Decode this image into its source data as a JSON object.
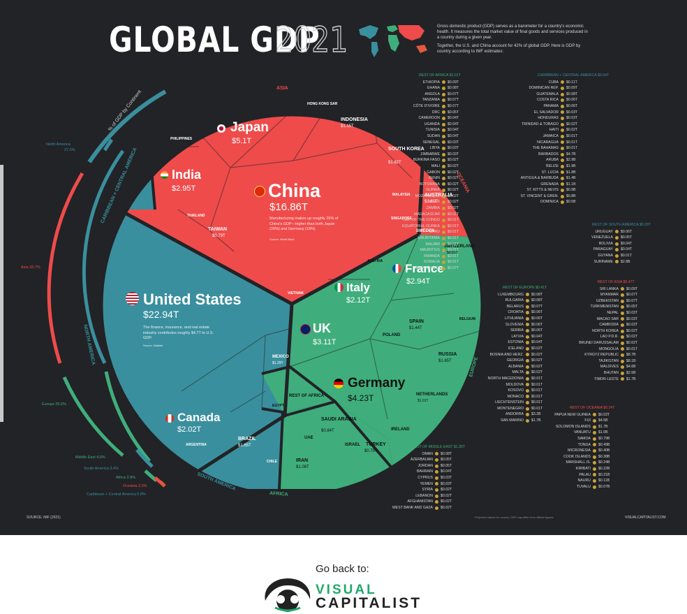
{
  "header": {
    "title": "GLOBAL GDP",
    "year": "2021",
    "intro_1": "Gross domestic product (GDP) serves as a barometer for a country's economic health. It measures the total market value of final goods and services produced in a country during a given year.",
    "intro_2": "Together, the U.S. and China account for 42% of global GDP. Here is GDP by country according to IMF estimates:"
  },
  "ring": {
    "label": "% of GDP by Continent",
    "north_america": "North America",
    "north_america_pct": "27.0%",
    "asia": "Asia 33.7%",
    "europe": "Europe 25.0%",
    "middle_east": "Middle East 4.6%",
    "south_america": "South America 3.4%",
    "africa": "Africa 2.8%",
    "oceania": "Oceania 2.0%",
    "caribbean": "Caribbean + Central America 0.8%"
  },
  "regions": {
    "asia": "ASIA",
    "oceania": "OCEANIA",
    "europe": "EUROPE",
    "north_america": "NORTH AMERICA",
    "south_america": "SOUTH AMERICA",
    "africa": "AFRICA",
    "middle_east": "MIDDLE EAST",
    "caribbean": "CARIBBEAN + CENTRAL AMERICA"
  },
  "chart_data": {
    "type": "voronoi-treemap",
    "title": "GLOBAL GDP 2021",
    "units": "$T",
    "continents": [
      {
        "name": "Asia",
        "share_pct": 33.7
      },
      {
        "name": "North America",
        "share_pct": 27.0
      },
      {
        "name": "Europe",
        "share_pct": 25.0
      },
      {
        "name": "Middle East",
        "share_pct": 4.6
      },
      {
        "name": "South America",
        "share_pct": 3.4
      },
      {
        "name": "Africa",
        "share_pct": 2.8
      },
      {
        "name": "Oceania",
        "share_pct": 2.0
      },
      {
        "name": "Caribbean + Central America",
        "share_pct": 0.8
      }
    ],
    "countries": [
      {
        "name": "United States",
        "gdp": "$22.94T",
        "region": "North America"
      },
      {
        "name": "China",
        "gdp": "$16.86T",
        "region": "Asia"
      },
      {
        "name": "Japan",
        "gdp": "$5.1T",
        "region": "Asia"
      },
      {
        "name": "Germany",
        "gdp": "$4.23T",
        "region": "Europe"
      },
      {
        "name": "UK",
        "gdp": "$3.11T",
        "region": "Europe"
      },
      {
        "name": "India",
        "gdp": "$2.95T",
        "region": "Asia"
      },
      {
        "name": "France",
        "gdp": "$2.94T",
        "region": "Europe"
      },
      {
        "name": "Italy",
        "gdp": "$2.12T",
        "region": "Europe"
      },
      {
        "name": "Canada",
        "gdp": "$2.02T",
        "region": "North America"
      },
      {
        "name": "South Korea",
        "gdp": "$1.82T",
        "region": "Asia"
      },
      {
        "name": "Russia",
        "gdp": "$1.65T",
        "region": "Europe"
      },
      {
        "name": "Brazil",
        "gdp": "$1.65T",
        "region": "South America"
      },
      {
        "name": "Australia",
        "gdp": "$1.61T",
        "region": "Oceania"
      },
      {
        "name": "Spain",
        "gdp": "$1.44T",
        "region": "Europe"
      },
      {
        "name": "Mexico",
        "gdp": "$1.29T",
        "region": "North America"
      },
      {
        "name": "Indonesia",
        "gdp": "$1.15T",
        "region": "Asia"
      },
      {
        "name": "Iran",
        "gdp": "$1.08T",
        "region": "Middle East"
      },
      {
        "name": "Netherlands",
        "gdp": "$1.01T",
        "region": "Europe"
      },
      {
        "name": "Saudi Arabia",
        "gdp": "$0.84T",
        "region": "Middle East"
      },
      {
        "name": "Switzerland",
        "gdp": "$0.81T",
        "region": "Europe"
      },
      {
        "name": "Taiwan",
        "gdp": "$0.79T",
        "region": "Asia"
      },
      {
        "name": "Turkey",
        "gdp": "$0.79T",
        "region": "Middle East"
      }
    ]
  },
  "labels": {
    "china_name": "China",
    "china_value": "$16.86T",
    "china_note": "Manufacturing makes up roughly 25% of China's GDP—higher than both Japan (20%) and Germany (18%)",
    "china_source": "Source: World Bank",
    "us_name": "United States",
    "us_value": "$22.94T",
    "us_note": "The finance, insurance, and real estate industry contributes roughly $4.7T to U.S. GDP.",
    "us_source": "Source: Statista",
    "japan_name": "Japan",
    "japan_value": "$5.1T",
    "india_name": "India",
    "india_value": "$2.95T",
    "germany_name": "Germany",
    "germany_value": "$4.23T",
    "uk_name": "UK",
    "uk_value": "$3.11T",
    "france_name": "France",
    "france_value": "$2.94T",
    "italy_name": "Italy",
    "italy_value": "$2.12T",
    "canada_name": "Canada",
    "canada_value": "$2.02T",
    "korea_name": "SOUTH KOREA",
    "korea_value": "$1.82T",
    "australia_name": "AUSTRALIA",
    "australia_value": "$1.61T",
    "indonesia_name": "INDONESIA",
    "indonesia_value": "$1.15T",
    "russia_name": "RUSSIA",
    "russia_value": "$1.65T",
    "brazil_name": "BRAZIL",
    "brazil_value": "$1.65T",
    "spain_name": "SPAIN",
    "spain_value": "$1.44T",
    "mexico_name": "MEXICO",
    "mexico_value": "$1.29T",
    "taiwan_name": "TAIWAN",
    "taiwan_value": "$0.79T",
    "saudi_name": "SAUDI ARABIA",
    "saudi_value": "$0.84T",
    "turkey_name": "TURKEY",
    "turkey_value": "$0.79T",
    "iran_name": "IRAN",
    "iran_value": "$1.08T",
    "netherlands_name": "NETHERLANDS",
    "netherlands_value": "$1.01T",
    "switzerland_name": "SWITZERLAND",
    "switzerland_value": "$0.81T",
    "sweden_name": "SWEDEN",
    "poland_name": "POLAND",
    "ireland_name": "IRELAND",
    "belgium_name": "BELGIUM",
    "austria_name": "AUSTRIA",
    "israel_name": "ISRAEL",
    "uae_name": "UAE",
    "egypt_name": "EGYPT",
    "argentina_name": "ARGENTINA",
    "chile_name": "CHILE",
    "thailand_name": "THAILAND",
    "philippines_name": "PHILIPPINES",
    "singapore_name": "SINGAPORE",
    "malaysia_name": "MALAYSIA",
    "hongkong_name": "HONG KONG SAR",
    "vietnam_name": "VIETNAM",
    "rest_africa": "REST OF AFRICA"
  },
  "lists": [
    {
      "header": "REST OF AFRICA $1.01T",
      "rows": [
        [
          "ETHIOPIA",
          "$0.09T"
        ],
        [
          "GHANA",
          "$0.08T"
        ],
        [
          "ANGOLA",
          "$0.07T"
        ],
        [
          "TANZANIA",
          "$0.07T"
        ],
        [
          "CÔTE D'IVOIRE",
          "$0.07T"
        ],
        [
          "DRC",
          "$0.05T"
        ],
        [
          "CAMEROON",
          "$0.04T"
        ],
        [
          "UGANDA",
          "$0.04T"
        ],
        [
          "TUNISIA",
          "$0.04T"
        ],
        [
          "SUDAN",
          "$0.04T"
        ],
        [
          "SENEGAL",
          "$0.03T"
        ],
        [
          "LIBYA",
          "$0.03T"
        ],
        [
          "ZIMBABWE",
          "$0.03T"
        ],
        [
          "BURKINA FASO",
          "$0.02T"
        ],
        [
          "MALI",
          "$0.02T"
        ],
        [
          "GABON",
          "$0.02T"
        ],
        [
          "BENIN",
          "$0.02T"
        ],
        [
          "BOTSWANA",
          "$0.02T"
        ],
        [
          "GUINEA",
          "$0.02T"
        ],
        [
          "MOZAMBIQUE",
          "$0.02T"
        ],
        [
          "NIGER",
          "$0.02T"
        ],
        [
          "ZAMBIA",
          "$0.02T"
        ],
        [
          "MADAGASCAR",
          "$0.01T"
        ],
        [
          "REP. OF THE CONGO",
          "$0.01T"
        ],
        [
          "EQUATORIAL GUINEA",
          "$0.01T"
        ],
        [
          "CHAD",
          "$0.01T"
        ],
        [
          "MAURITANIA",
          "$0.01T"
        ],
        [
          "MALAWI",
          "$0.01T"
        ],
        [
          "MAURITIUS",
          "$0.01T"
        ],
        [
          "RWANDA",
          "$0.01T"
        ],
        [
          "SOMALIA",
          "$0.01T"
        ],
        [
          "REMAINING 13",
          "$0.07T"
        ]
      ]
    },
    {
      "header": "REST OF MIDDLE EAST $1.35T",
      "rows": [
        [
          "OMAN",
          "$0.08T"
        ],
        [
          "AZERBAIJAN",
          "$0.05T"
        ],
        [
          "JORDAN",
          "$0.05T"
        ],
        [
          "BAHRAIN",
          "$0.04T"
        ],
        [
          "CYPRUS",
          "$0.03T"
        ],
        [
          "YEMEN",
          "$0.03T"
        ],
        [
          "SYRIA",
          "$0.02T"
        ],
        [
          "LEBANON",
          "$0.02T"
        ],
        [
          "AFGHANISTAN",
          "$0.02T"
        ],
        [
          "WEST BANK AND GAZA",
          "$0.02T"
        ]
      ]
    },
    {
      "header": "CARIBBEAN + CENTRAL AMERICA $0.64T",
      "rows": [
        [
          "CUBA",
          "$0.11T"
        ],
        [
          "DOMINICAN REP.",
          "$0.09T"
        ],
        [
          "GUATEMALA",
          "$0.08T"
        ],
        [
          "COSTA RICA",
          "$0.06T"
        ],
        [
          "PANAMA",
          "$0.06T"
        ],
        [
          "EL SALVADOR",
          "$0.03T"
        ],
        [
          "HONDURAS",
          "$0.03T"
        ],
        [
          "TRINIDAD & TOBAGO",
          "$0.02T"
        ],
        [
          "HAITI",
          "$0.02T"
        ],
        [
          "JAMAICA",
          "$0.01T"
        ],
        [
          "NICARAGUA",
          "$0.01T"
        ],
        [
          "THE BAHAMAS",
          "$0.01T"
        ],
        [
          "BARBADOS",
          "$4.7B"
        ],
        [
          "ARUBA",
          "$2.9B"
        ],
        [
          "BELIZE",
          "$1.9B"
        ],
        [
          "ST. LUCIA",
          "$1.8B"
        ],
        [
          "ANTIGUA & BARBUDA",
          "$1.4B"
        ],
        [
          "GRENADA",
          "$1.1B"
        ],
        [
          "ST. KITTS & NEVIS",
          "$0.9B"
        ],
        [
          "ST. VINCENT & GREN.",
          "$0.8B"
        ],
        [
          "DOMINICA",
          "$0.5B"
        ]
      ]
    },
    {
      "header": "REST OF SOUTH AMERICA $0.29T",
      "rows": [
        [
          "URUGUAY",
          "$0.06T"
        ],
        [
          "VENEZUELA",
          "$0.05T"
        ],
        [
          "BOLIVIA",
          "$0.04T"
        ],
        [
          "PARAGUAY",
          "$0.04T"
        ],
        [
          "GUYANA",
          "$0.01T"
        ],
        [
          "SURINAME",
          "$2.8B"
        ]
      ]
    },
    {
      "header": "REST OF ASIA $0.47T",
      "rows": [
        [
          "SRI LANKA",
          "$0.09T"
        ],
        [
          "MYANMAR",
          "$0.07T"
        ],
        [
          "UZBEKISTAN",
          "$0.07T"
        ],
        [
          "TURKMENISTAN",
          "$0.05T"
        ],
        [
          "NEPAL",
          "$0.03T"
        ],
        [
          "MACAO SAR",
          "$0.03T"
        ],
        [
          "CAMBODIA",
          "$0.03T"
        ],
        [
          "NORTH KOREA",
          "$0.02T"
        ],
        [
          "LAO P.D.R.",
          "$0.02T"
        ],
        [
          "BRUNEI DARUSSALAM",
          "$0.02T"
        ],
        [
          "MONGOLIA",
          "$0.01T"
        ],
        [
          "KYRGYZ REPUBLIC",
          "$8.7B"
        ],
        [
          "TAJIKISTAN",
          "$8.1B"
        ],
        [
          "MALDIVES",
          "$4.6B"
        ],
        [
          "BHUTAN",
          "$2.5B"
        ],
        [
          "TIMOR-LESTE",
          "$1.7B"
        ]
      ]
    },
    {
      "header": "REST OF EUROPE $0.41T",
      "rows": [
        [
          "LUXEMBOURG",
          "$0.08T"
        ],
        [
          "BULGARIA",
          "$0.08T"
        ],
        [
          "BELARUS",
          "$0.07T"
        ],
        [
          "CROATIA",
          "$0.06T"
        ],
        [
          "LITHUANIA",
          "$0.06T"
        ],
        [
          "SLOVENIA",
          "$0.06T"
        ],
        [
          "SERBIA",
          "$0.06T"
        ],
        [
          "LATVIA",
          "$0.04T"
        ],
        [
          "ESTONIA",
          "$0.04T"
        ],
        [
          "ICELAND",
          "$0.02T"
        ],
        [
          "BOSNIA AND HERZ.",
          "$0.02T"
        ],
        [
          "GEORGIA",
          "$0.02T"
        ],
        [
          "ALBANIA",
          "$0.02T"
        ],
        [
          "MALTA",
          "$0.02T"
        ],
        [
          "NORTH MACEDONIA",
          "$0.01T"
        ],
        [
          "MOLDOVA",
          "$0.01T"
        ],
        [
          "KOSOVO",
          "$0.01T"
        ],
        [
          "MONACO",
          "$0.01T"
        ],
        [
          "LIECHTENSTEIN",
          "$0.01T"
        ],
        [
          "MONTENEGRO",
          "$0.01T"
        ],
        [
          "ANDORRA",
          "$3.2B"
        ],
        [
          "SAN MARINO",
          "$1.7B"
        ]
      ]
    },
    {
      "header": "REST OF OCEANIA $0.24T",
      "rows": [
        [
          "PAPUA NEW GUINEA",
          "$0.03T"
        ],
        [
          "FIJI",
          "$4.5B"
        ],
        [
          "SOLOMON ISLANDS",
          "$1.7B"
        ],
        [
          "VANUATU",
          "$1.0B"
        ],
        [
          "SAMOA",
          "$0.79B"
        ],
        [
          "TONGA",
          "$0.49B"
        ],
        [
          "MICRONESIA",
          "$0.40B"
        ],
        [
          "COOK ISLANDS",
          "$0.38B"
        ],
        [
          "MARSHALL IS.",
          "$0.24B"
        ],
        [
          "KIRIBATI",
          "$0.22B"
        ],
        [
          "PALAU",
          "$0.21B"
        ],
        [
          "NAURU",
          "$0.11B"
        ],
        [
          "TUVALU",
          "$0.07B"
        ]
      ]
    }
  ],
  "footer": {
    "source": "SOURCE: IMF (2021)",
    "note": "Projected values for country GDP may differ from official figures",
    "site": "VISUALCAPITALIST.COM"
  },
  "page": {
    "go_back": "Go back to:",
    "brand_1": "VISUAL",
    "brand_2": "CAPITALIST"
  },
  "colors": {
    "background": "#222326",
    "asia": "#ef4b4b",
    "north_america": "#3a8f9e",
    "europe": "#3fae7c",
    "middle_east": "#3fae7c",
    "south_america": "#3a8f9e",
    "africa": "#3fae7c",
    "brand_green": "#20a86b"
  }
}
